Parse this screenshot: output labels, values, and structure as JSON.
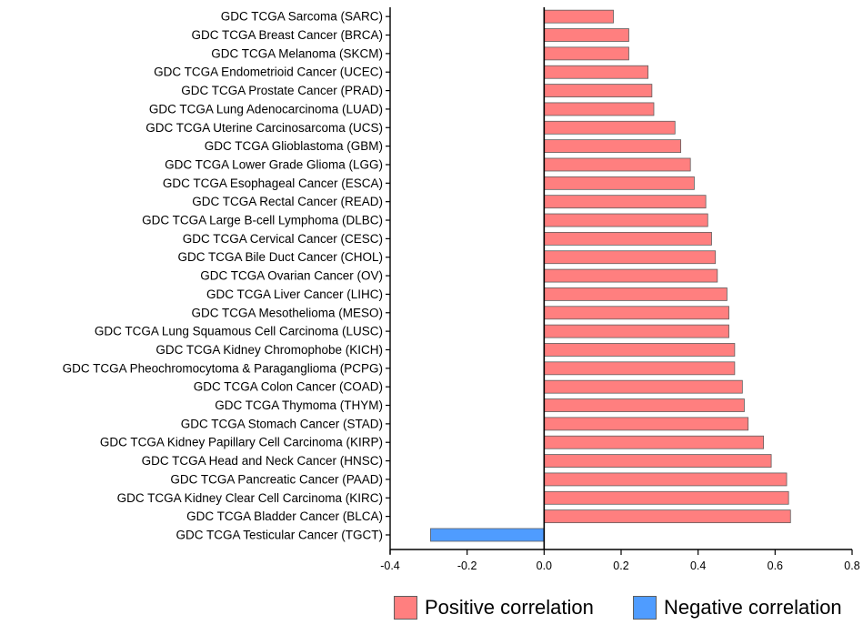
{
  "chart_data": {
    "type": "bar",
    "orientation": "horizontal",
    "categories": [
      "GDC TCGA Sarcoma (SARC)",
      "GDC TCGA Breast Cancer (BRCA)",
      "GDC TCGA Melanoma (SKCM)",
      "GDC TCGA Endometrioid Cancer (UCEC)",
      "GDC TCGA Prostate Cancer (PRAD)",
      "GDC TCGA Lung Adenocarcinoma (LUAD)",
      "GDC TCGA Uterine Carcinosarcoma (UCS)",
      "GDC TCGA Glioblastoma (GBM)",
      "GDC TCGA Lower Grade Glioma (LGG)",
      "GDC TCGA Esophageal Cancer (ESCA)",
      "GDC TCGA Rectal Cancer (READ)",
      "GDC TCGA Large B-cell Lymphoma (DLBC)",
      "GDC TCGA Cervical Cancer (CESC)",
      "GDC TCGA Bile Duct Cancer (CHOL)",
      "GDC TCGA Ovarian Cancer (OV)",
      "GDC TCGA Liver Cancer (LIHC)",
      "GDC TCGA Mesothelioma (MESO)",
      "GDC TCGA Lung Squamous Cell Carcinoma (LUSC)",
      "GDC TCGA Kidney Chromophobe (KICH)",
      "GDC TCGA Pheochromocytoma & Paraganglioma (PCPG)",
      "GDC TCGA Colon Cancer (COAD)",
      "GDC TCGA Thymoma (THYM)",
      "GDC TCGA Stomach Cancer (STAD)",
      "GDC TCGA Kidney Papillary Cell Carcinoma (KIRP)",
      "GDC TCGA Head and Neck Cancer (HNSC)",
      "GDC TCGA Pancreatic Cancer (PAAD)",
      "GDC TCGA Kidney Clear Cell Carcinoma (KIRC)",
      "GDC TCGA Bladder Cancer (BLCA)",
      "GDC TCGA Testicular Cancer (TGCT)"
    ],
    "values": [
      0.18,
      0.22,
      0.22,
      0.27,
      0.28,
      0.285,
      0.34,
      0.355,
      0.38,
      0.39,
      0.42,
      0.425,
      0.435,
      0.445,
      0.45,
      0.475,
      0.48,
      0.48,
      0.495,
      0.495,
      0.515,
      0.52,
      0.53,
      0.57,
      0.59,
      0.63,
      0.635,
      0.64,
      -0.295
    ],
    "xlim": [
      -0.4,
      0.8
    ],
    "xticks": [
      -0.4,
      -0.2,
      0.0,
      0.2,
      0.4,
      0.6,
      0.8
    ],
    "xtick_labels": [
      "-0.4",
      "-0.2",
      "0.0",
      "0.2",
      "0.4",
      "0.6",
      "0.8"
    ],
    "title": "",
    "xlabel": "",
    "ylabel": "",
    "grid": false,
    "legend_position": "bottom-right",
    "legend": [
      {
        "label": "Positive correlation",
        "color": "#ff7f7f"
      },
      {
        "label": "Negative correlation",
        "color": "#4f9cff"
      }
    ],
    "colors": {
      "positive": "#ff7f7f",
      "negative": "#4f9cff",
      "border": "#5f5f5f"
    }
  }
}
